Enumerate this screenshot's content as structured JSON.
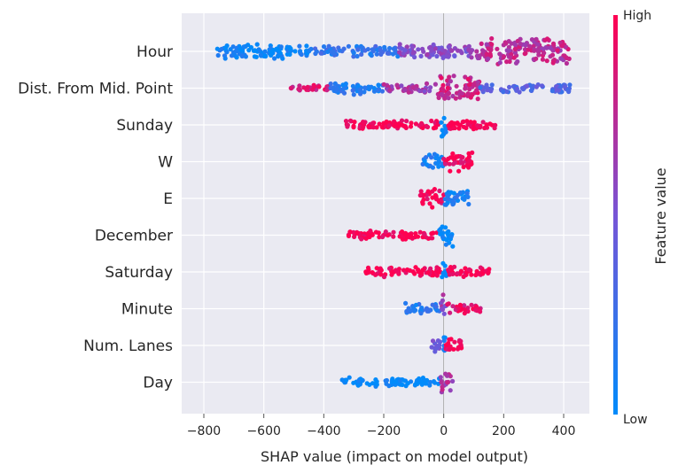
{
  "chart_data": {
    "type": "scatter",
    "subtype": "shap-beeswarm",
    "xlabel": "SHAP value (impact on model output)",
    "xlim": [
      -800,
      470
    ],
    "xticks": [
      -800,
      -600,
      -400,
      -200,
      0,
      200,
      400
    ],
    "xtick_labels": [
      "−800",
      "−600",
      "−400",
      "−200",
      "0",
      "200",
      "400"
    ],
    "grid": true,
    "colorbar": {
      "label": "Feature value",
      "high_label": "High",
      "low_label": "Low",
      "low_color": "#008bfb",
      "mid_color": "#7755d6",
      "high_color": "#ff0051"
    },
    "features": [
      {
        "name": "Hour",
        "min": -760,
        "max": 420,
        "segments": [
          {
            "from": -760,
            "to": -450,
            "color": 0.05,
            "density": 0.55
          },
          {
            "from": -450,
            "to": -150,
            "color": 0.2,
            "density": 0.35
          },
          {
            "from": -150,
            "to": 100,
            "color": 0.55,
            "density": 0.55
          },
          {
            "from": 100,
            "to": 420,
            "color": 0.75,
            "density": 1.0
          }
        ]
      },
      {
        "name": "Dist. From Mid. Point",
        "min": -520,
        "max": 430,
        "segments": [
          {
            "from": -520,
            "to": -380,
            "color": 0.85,
            "density": 0.2
          },
          {
            "from": -380,
            "to": -200,
            "color": 0.15,
            "density": 0.45
          },
          {
            "from": -200,
            "to": -20,
            "color": 0.65,
            "density": 0.3
          },
          {
            "from": -20,
            "to": 120,
            "color": 0.8,
            "density": 1.0
          },
          {
            "from": 120,
            "to": 430,
            "color": 0.35,
            "density": 0.3
          }
        ]
      },
      {
        "name": "Sunday",
        "min": -330,
        "max": 180,
        "segments": [
          {
            "from": -330,
            "to": -10,
            "color": 1.0,
            "density": 0.3
          },
          {
            "from": -10,
            "to": 10,
            "color": 0.0,
            "density": 1.0
          },
          {
            "from": 10,
            "to": 180,
            "color": 1.0,
            "density": 0.3
          }
        ]
      },
      {
        "name": "W",
        "min": -70,
        "max": 95,
        "segments": [
          {
            "from": -70,
            "to": 0,
            "color": 0.1,
            "density": 0.6
          },
          {
            "from": 0,
            "to": 95,
            "color": 0.95,
            "density": 0.7
          }
        ]
      },
      {
        "name": "E",
        "min": -80,
        "max": 85,
        "segments": [
          {
            "from": -80,
            "to": 0,
            "color": 0.95,
            "density": 0.7
          },
          {
            "from": 0,
            "to": 85,
            "color": 0.1,
            "density": 0.7
          }
        ]
      },
      {
        "name": "December",
        "min": -320,
        "max": 30,
        "segments": [
          {
            "from": -320,
            "to": -15,
            "color": 1.0,
            "density": 0.3
          },
          {
            "from": -15,
            "to": 30,
            "color": 0.0,
            "density": 1.0
          }
        ]
      },
      {
        "name": "Saturday",
        "min": -260,
        "max": 160,
        "segments": [
          {
            "from": -260,
            "to": -10,
            "color": 1.0,
            "density": 0.35
          },
          {
            "from": -10,
            "to": 10,
            "color": 0.0,
            "density": 1.0
          },
          {
            "from": 10,
            "to": 160,
            "color": 1.0,
            "density": 0.35
          }
        ]
      },
      {
        "name": "Minute",
        "min": -130,
        "max": 125,
        "segments": [
          {
            "from": -130,
            "to": -10,
            "color": 0.15,
            "density": 0.35
          },
          {
            "from": -10,
            "to": 10,
            "color": 0.6,
            "density": 1.0
          },
          {
            "from": 10,
            "to": 125,
            "color": 0.9,
            "density": 0.35
          }
        ]
      },
      {
        "name": "Num. Lanes",
        "min": -45,
        "max": 65,
        "segments": [
          {
            "from": -45,
            "to": -5,
            "color": 0.5,
            "density": 0.5
          },
          {
            "from": -5,
            "to": 5,
            "color": 0.1,
            "density": 1.0
          },
          {
            "from": 5,
            "to": 65,
            "color": 1.0,
            "density": 0.6
          }
        ]
      },
      {
        "name": "Day",
        "min": -340,
        "max": 30,
        "segments": [
          {
            "from": -340,
            "to": -10,
            "color": 0.0,
            "density": 0.3
          },
          {
            "from": -10,
            "to": 30,
            "color": 0.7,
            "density": 0.8
          }
        ]
      }
    ]
  }
}
